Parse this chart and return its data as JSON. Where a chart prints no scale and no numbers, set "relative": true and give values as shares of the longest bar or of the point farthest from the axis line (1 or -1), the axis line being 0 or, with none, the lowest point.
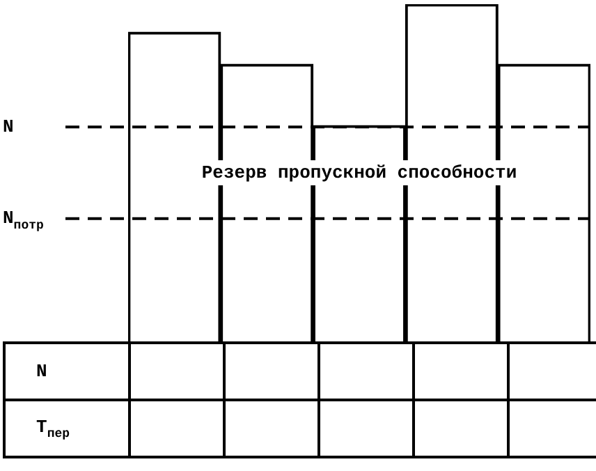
{
  "chart_data": {
    "type": "bar",
    "relative": true,
    "categories": [
      null,
      null,
      null,
      null,
      null
    ],
    "values": [
      0.917,
      0.822,
      0.64,
      1,
      0.822
    ],
    "color": "#ffffff",
    "ref_lines": [
      {
        "axis": "y",
        "value": 0.636,
        "label": "N",
        "line_style": "dashed",
        "color": "#000000"
      },
      {
        "axis": "y",
        "value": 0.364,
        "label": "N$_{потр}$",
        "line_style": "dashed",
        "color": "#000000"
      }
    ],
    "annotations": [
      "Резерв пропускной способности",
      "N",
      "T$_{пер}$"
    ],
    "legend": false
  }
}
